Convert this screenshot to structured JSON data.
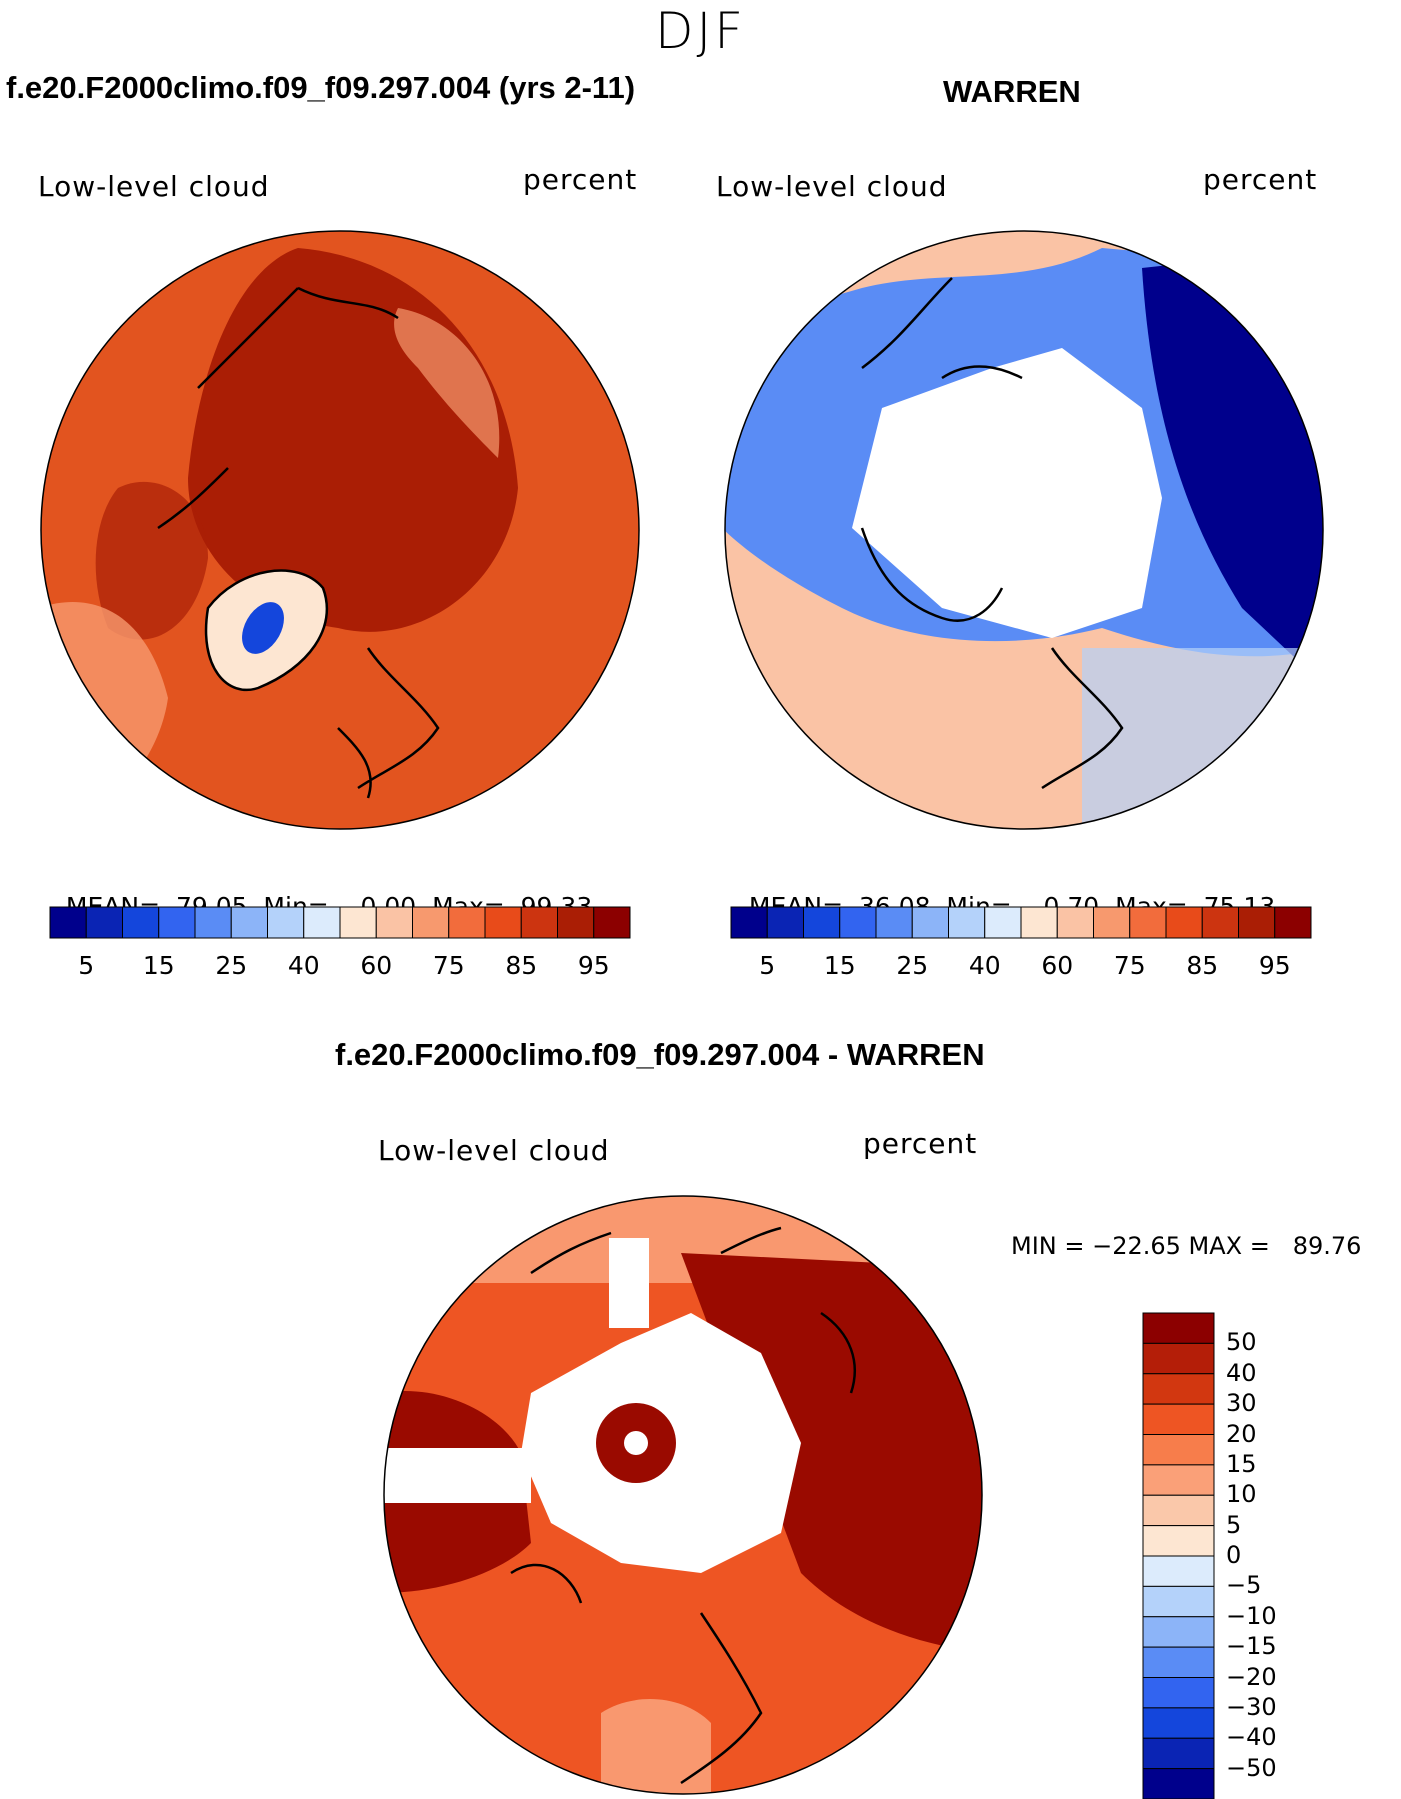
{
  "figure": {
    "season": "DJF"
  },
  "panels": [
    {
      "id": "model",
      "title": "f.e20.F2000climo.f09_f09.297.004 (yrs 2-11)",
      "variable": "Low-level cloud",
      "units": "percent",
      "stats": {
        "mean_label": "MEAN=",
        "mean": "79.05",
        "min_label": "Min=",
        "min": "0.00",
        "max_label": "Max=",
        "max": "99.33"
      }
    },
    {
      "id": "obs",
      "title": "WARREN",
      "variable": "Low-level cloud",
      "units": "percent",
      "stats": {
        "mean_label": "MEAN=",
        "mean": "36.08",
        "min_label": "Min=",
        "min": "0.70",
        "max_label": "Max=",
        "max": "75.13"
      }
    },
    {
      "id": "diff",
      "title": "f.e20.F2000climo.f09_f09.297.004 - WARREN",
      "variable": "Low-level cloud",
      "units": "percent",
      "stats_line": "MIN = −22.65 MAX =   89.76"
    }
  ],
  "abs_colorbar": {
    "colors": [
      "#00008c",
      "#0a24b4",
      "#1446dc",
      "#3264f0",
      "#5a8cf5",
      "#8cb4f8",
      "#b4d2fa",
      "#dcebfc",
      "#fde6d2",
      "#fac3a5",
      "#f7996e",
      "#f26c3c",
      "#e84b1a",
      "#cc3410",
      "#aa1e05",
      "#8c0000"
    ],
    "tick_labels": [
      "5",
      "15",
      "25",
      "40",
      "60",
      "75",
      "85",
      "95"
    ]
  },
  "diff_colorbar": {
    "colors": [
      "#8c0000",
      "#b41e08",
      "#d23710",
      "#ee5523",
      "#f77d4b",
      "#faa078",
      "#fac8aa",
      "#fde6d2",
      "#dcebfc",
      "#b4d2fa",
      "#8cb4f8",
      "#5a8cf5",
      "#3264f0",
      "#1446dc",
      "#0a24b4",
      "#00008c"
    ],
    "tick_labels": [
      "50",
      "40",
      "30",
      "20",
      "15",
      "10",
      "5",
      "0",
      "−5",
      "−10",
      "−15",
      "−20",
      "−30",
      "−40",
      "−50"
    ]
  },
  "map_fill": {
    "model_base": "#e2541f",
    "model_core": "#aa1e05",
    "model_greenland": "#fde6d2",
    "model_greenland_center": "#1446dc",
    "obs_outer": "#fac3a5",
    "obs_ring": "#5a8cf5",
    "obs_east": "#00008c",
    "obs_missing": "#ffffff",
    "diff_base": "#ee5523",
    "diff_core": "#9a0a00",
    "diff_missing": "#ffffff"
  }
}
